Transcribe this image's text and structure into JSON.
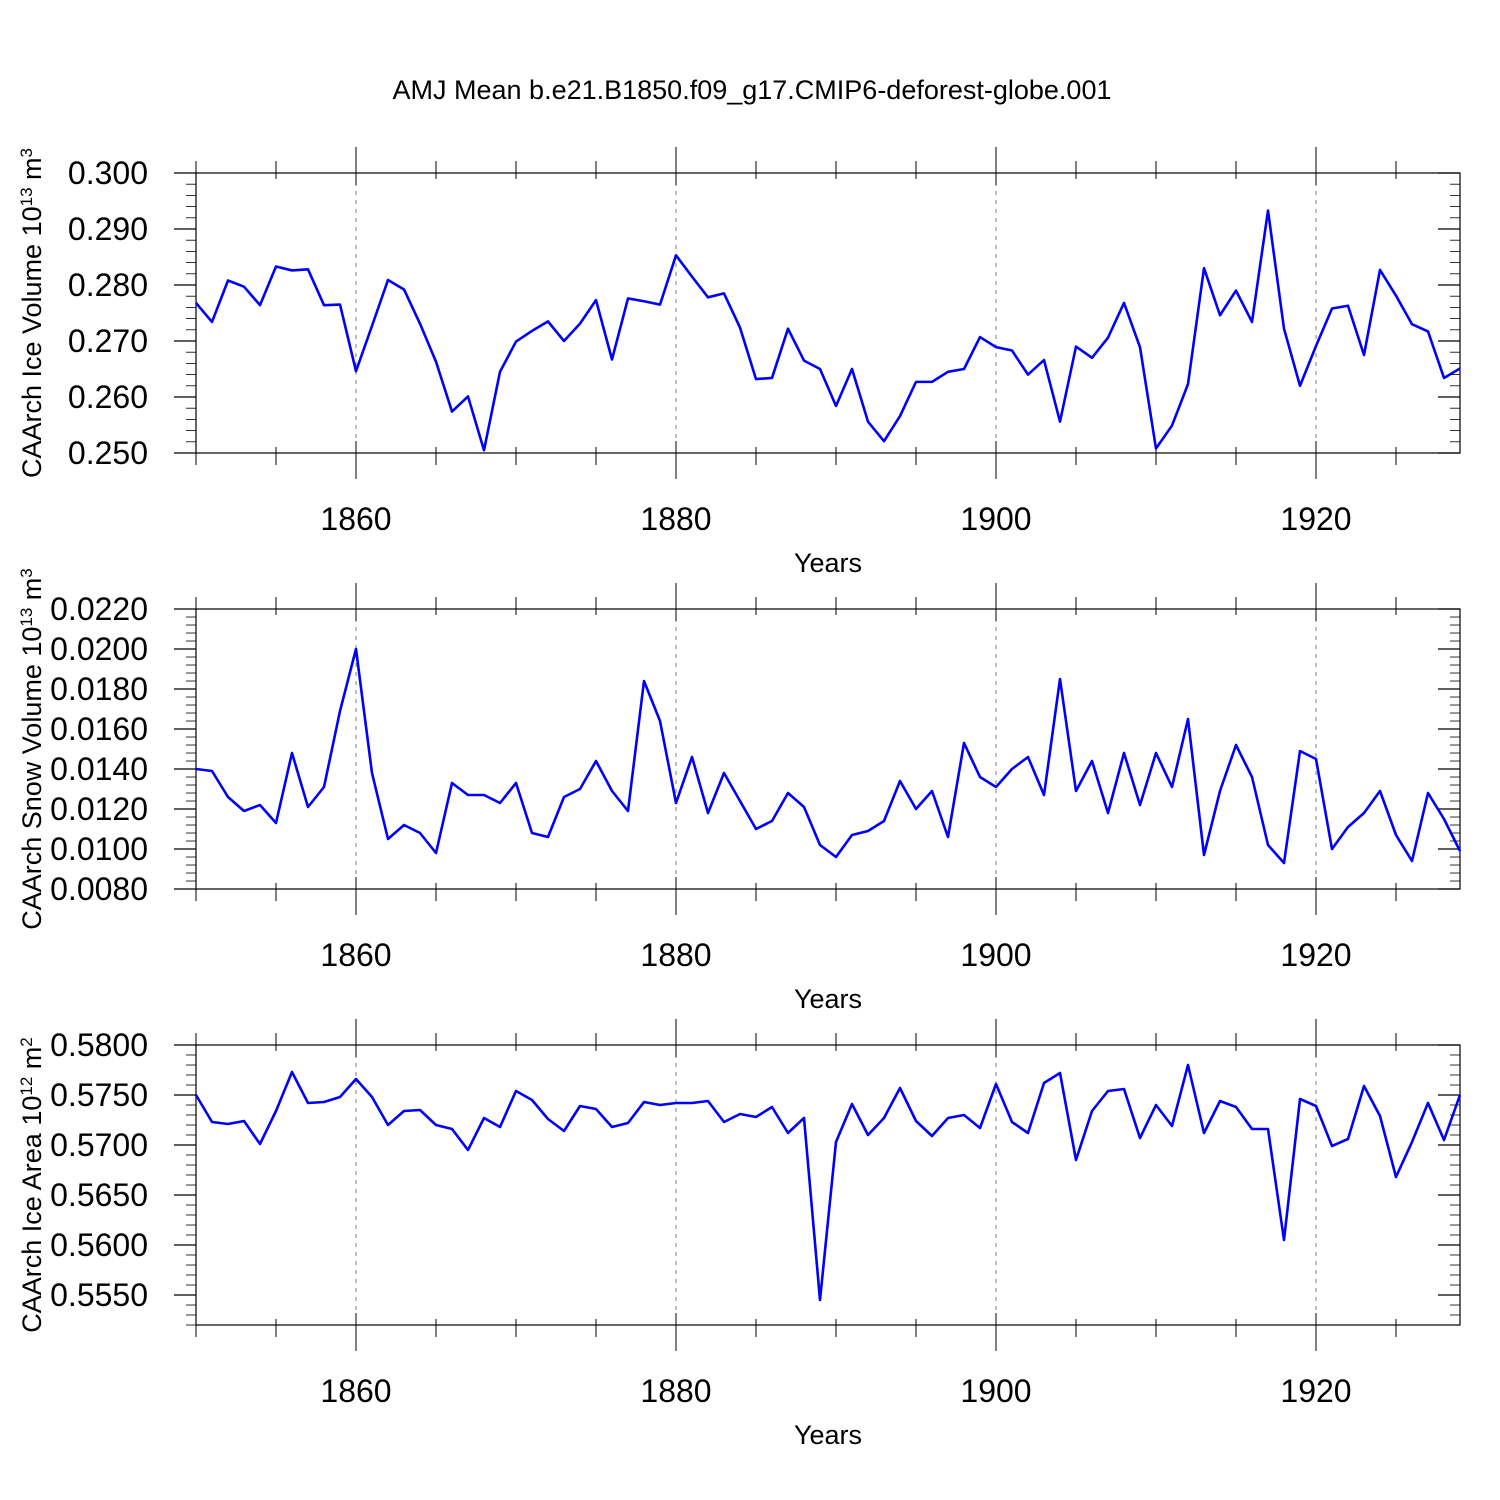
{
  "figure_title": "AMJ Mean b.e21.B1850.f09_g17.CMIP6-deforest-globe.001",
  "line_color": "#0000ff",
  "chart_data": [
    {
      "type": "line",
      "ylabel": "CAArch Ice Volume",
      "unit_power": "13",
      "unit_suffix": "m",
      "unit_exp": "3",
      "xlabel": "Years",
      "xlim": [
        1850,
        1929
      ],
      "xticks": [
        1860,
        1880,
        1900,
        1920
      ],
      "xtick_labels": [
        "1860",
        "1880",
        "1900",
        "1920"
      ],
      "ylim": [
        0.25,
        0.3
      ],
      "yticks": [
        0.25,
        0.26,
        0.27,
        0.28,
        0.29,
        0.3
      ],
      "ytick_labels": [
        "0.250",
        "0.260",
        "0.270",
        "0.280",
        "0.290",
        "0.300"
      ],
      "yminor_step": 0.002,
      "series": [
        {
          "name": "CAArch Ice Volume",
          "x_start": 1850,
          "values": [
            0.2768,
            0.2734,
            0.2808,
            0.2797,
            0.2764,
            0.2833,
            0.2826,
            0.2828,
            0.2764,
            0.2765,
            0.2646,
            0.2727,
            0.2809,
            0.2792,
            0.2731,
            0.2663,
            0.2574,
            0.2601,
            0.2505,
            0.2645,
            0.2699,
            0.2718,
            0.2735,
            0.27,
            0.2731,
            0.2773,
            0.2667,
            0.2776,
            0.2771,
            0.2765,
            0.2853,
            0.2815,
            0.2778,
            0.2785,
            0.2724,
            0.2632,
            0.2634,
            0.2722,
            0.2665,
            0.265,
            0.2584,
            0.265,
            0.2556,
            0.2521,
            0.2566,
            0.2627,
            0.2627,
            0.2645,
            0.265,
            0.2707,
            0.2689,
            0.2683,
            0.264,
            0.2666,
            0.2556,
            0.269,
            0.267,
            0.2706,
            0.2768,
            0.2689,
            0.2508,
            0.2549,
            0.2623,
            0.283,
            0.2746,
            0.279,
            0.2734,
            0.2933,
            0.2722,
            0.262,
            0.2691,
            0.2758,
            0.2763,
            0.2675,
            0.2827,
            0.2781,
            0.273,
            0.2717,
            0.2634,
            0.2651
          ]
        }
      ]
    },
    {
      "type": "line",
      "ylabel": "CAArch Snow Volume",
      "unit_power": "13",
      "unit_suffix": "m",
      "unit_exp": "3",
      "xlabel": "Years",
      "xlim": [
        1850,
        1929
      ],
      "xticks": [
        1860,
        1880,
        1900,
        1920
      ],
      "xtick_labels": [
        "1860",
        "1880",
        "1900",
        "1920"
      ],
      "ylim": [
        0.008,
        0.022
      ],
      "yticks": [
        0.008,
        0.01,
        0.012,
        0.014,
        0.016,
        0.018,
        0.02,
        0.022
      ],
      "ytick_labels": [
        "0.0080",
        "0.0100",
        "0.0120",
        "0.0140",
        "0.0160",
        "0.0180",
        "0.0200",
        "0.0220"
      ],
      "yminor_step": 0.0004,
      "series": [
        {
          "name": "CAArch Snow Volume",
          "x_start": 1850,
          "values": [
            0.014,
            0.0139,
            0.0126,
            0.0119,
            0.0122,
            0.0113,
            0.0148,
            0.0121,
            0.0131,
            0.0169,
            0.02,
            0.0138,
            0.0105,
            0.0112,
            0.0108,
            0.0098,
            0.0133,
            0.0127,
            0.0127,
            0.0123,
            0.0133,
            0.0108,
            0.0106,
            0.0126,
            0.013,
            0.0144,
            0.0129,
            0.0119,
            0.0184,
            0.0164,
            0.0123,
            0.0146,
            0.0118,
            0.0138,
            0.0124,
            0.011,
            0.0114,
            0.0128,
            0.0121,
            0.0102,
            0.0096,
            0.0107,
            0.0109,
            0.0114,
            0.0134,
            0.012,
            0.0129,
            0.0106,
            0.0153,
            0.0136,
            0.0131,
            0.014,
            0.0146,
            0.0127,
            0.0185,
            0.0129,
            0.0144,
            0.0118,
            0.0148,
            0.0122,
            0.0148,
            0.0131,
            0.0165,
            0.0097,
            0.0129,
            0.0152,
            0.0136,
            0.0102,
            0.0093,
            0.0149,
            0.0145,
            0.01,
            0.0111,
            0.0118,
            0.0129,
            0.0107,
            0.0094,
            0.0128,
            0.0115,
            0.0099
          ]
        }
      ]
    },
    {
      "type": "line",
      "ylabel": "CAArch Ice Area",
      "unit_power": "12",
      "unit_suffix": "m",
      "unit_exp": "2",
      "xlabel": "Years",
      "xlim": [
        1850,
        1929
      ],
      "xticks": [
        1860,
        1880,
        1900,
        1920
      ],
      "xtick_labels": [
        "1860",
        "1880",
        "1900",
        "1920"
      ],
      "ylim": [
        0.552,
        0.58
      ],
      "yticks": [
        0.555,
        0.56,
        0.565,
        0.57,
        0.575,
        0.58
      ],
      "ytick_labels": [
        "0.5550",
        "0.5600",
        "0.5650",
        "0.5700",
        "0.5750",
        "0.5800"
      ],
      "yminor_step": 0.001,
      "series": [
        {
          "name": "CAArch Ice Area",
          "x_start": 1850,
          "values": [
            0.575,
            0.5723,
            0.5721,
            0.5724,
            0.5701,
            0.5734,
            0.5773,
            0.5742,
            0.5743,
            0.5748,
            0.5766,
            0.5748,
            0.572,
            0.5734,
            0.5735,
            0.572,
            0.5716,
            0.5695,
            0.5727,
            0.5718,
            0.5754,
            0.5745,
            0.5726,
            0.5714,
            0.5739,
            0.5736,
            0.5718,
            0.5722,
            0.5743,
            0.574,
            0.5742,
            0.5742,
            0.5744,
            0.5723,
            0.5731,
            0.5728,
            0.5738,
            0.5712,
            0.5727,
            0.5545,
            0.5703,
            0.5741,
            0.571,
            0.5727,
            0.5757,
            0.5724,
            0.5709,
            0.5727,
            0.573,
            0.5717,
            0.5761,
            0.5723,
            0.5712,
            0.5762,
            0.5772,
            0.5685,
            0.5734,
            0.5754,
            0.5756,
            0.5707,
            0.574,
            0.5719,
            0.578,
            0.5712,
            0.5744,
            0.5738,
            0.5716,
            0.5716,
            0.5605,
            0.5746,
            0.5739,
            0.5699,
            0.5706,
            0.5759,
            0.5729,
            0.5668,
            0.5703,
            0.5742,
            0.5705,
            0.575
          ]
        }
      ]
    }
  ]
}
